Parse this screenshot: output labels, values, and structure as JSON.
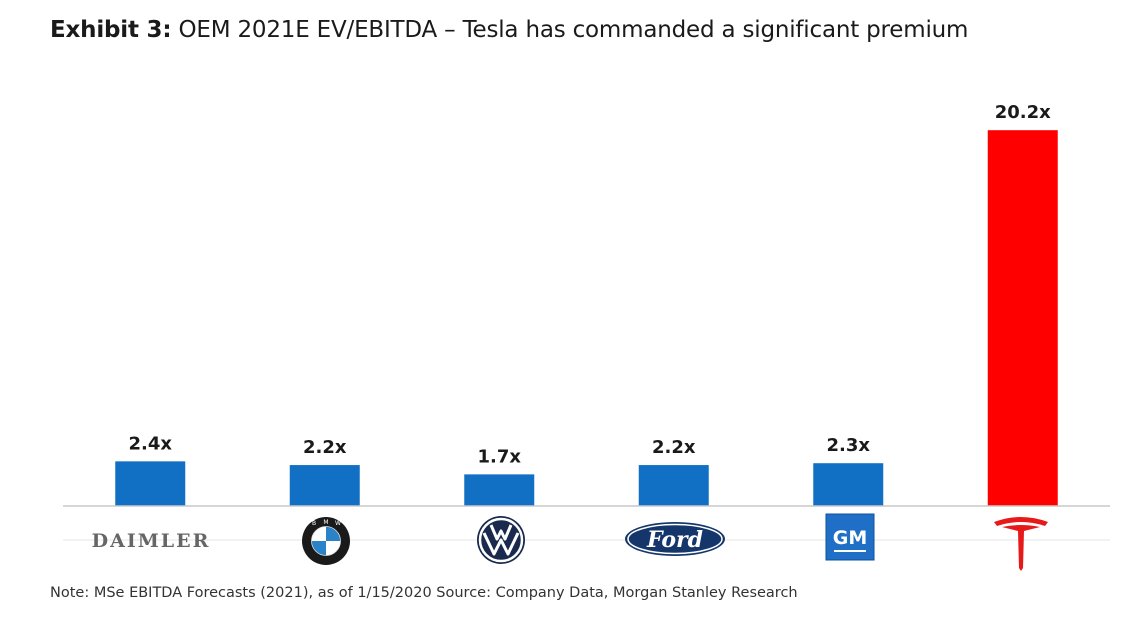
{
  "header": {
    "exhibit": "Exhibit 3:",
    "title": "OEM 2021E EV/EBITDA – Tesla has commanded a significant premium"
  },
  "chart_data": {
    "type": "bar",
    "title": "OEM 2021E EV/EBITDA – Tesla has commanded a significant premium",
    "categories": [
      "Daimler",
      "BMW",
      "Volkswagen",
      "Ford",
      "GM",
      "Tesla"
    ],
    "values": [
      2.4,
      2.2,
      1.7,
      2.2,
      2.3,
      20.2
    ],
    "data_labels": [
      "2.4x",
      "2.2x",
      "1.7x",
      "2.2x",
      "2.3x",
      "20.2x"
    ],
    "colors": [
      "#1170c4",
      "#1170c4",
      "#1170c4",
      "#1170c4",
      "#1170c4",
      "#ff0000"
    ],
    "ylim": [
      0,
      21.5
    ],
    "grid": false,
    "xlabel": "",
    "ylabel": ""
  },
  "logos": {
    "daimler_text": "DAIMLER",
    "gm_text": "GM",
    "ford_text": "Ford",
    "bmw_letters": [
      "B",
      "M",
      "W"
    ]
  },
  "footer": {
    "note": "Note: MSe EBITDA Forecasts (2021), as of 1/15/2020 Source: Company Data, Morgan Stanley Research"
  }
}
